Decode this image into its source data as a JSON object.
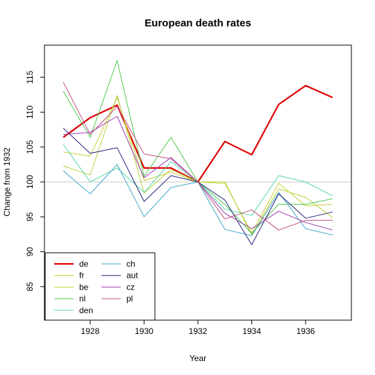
{
  "chart_data": {
    "type": "line",
    "title": "European death rates",
    "xlabel": "Year",
    "ylabel": "Change from 1932",
    "x": [
      1927,
      1928,
      1929,
      1930,
      1931,
      1932,
      1933,
      1934,
      1935,
      1936,
      1937
    ],
    "xlim": [
      1926.3,
      1937.7
    ],
    "ylim": [
      80.2,
      119.6
    ],
    "xticks": [
      1928,
      1930,
      1932,
      1934,
      1936
    ],
    "yticks": [
      85,
      90,
      95,
      100,
      105,
      110,
      115
    ],
    "reference_line": 100,
    "legend_position": "bottom-left",
    "series": [
      {
        "name": "de",
        "color": "#dd0000",
        "width": 2.2,
        "values": [
          106.4,
          109.2,
          111.0,
          102.0,
          102.0,
          100.0,
          105.8,
          103.9,
          111.1,
          113.8,
          112.1
        ]
      },
      {
        "name": "fr",
        "color": "#c8cc33",
        "width": 1,
        "values": [
          104.3,
          103.7,
          112.1,
          100.2,
          101.4,
          100.0,
          99.8,
          92.7,
          99.8,
          96.6,
          96.8
        ]
      },
      {
        "name": "be",
        "color": "#b6d439",
        "width": 1,
        "values": [
          102.3,
          101.0,
          112.4,
          98.4,
          101.8,
          100.0,
          100.0,
          92.4,
          99.0,
          97.8,
          94.9
        ]
      },
      {
        "name": "nl",
        "color": "#4cc94c",
        "width": 1,
        "values": [
          113.0,
          106.4,
          117.4,
          100.8,
          106.4,
          100.0,
          96.8,
          92.6,
          96.8,
          96.8,
          97.6
        ]
      },
      {
        "name": "den",
        "color": "#55d6a8",
        "width": 1,
        "values": [
          105.4,
          100.0,
          102.0,
          98.5,
          102.9,
          100.0,
          96.1,
          95.2,
          100.9,
          100.0,
          98.0
        ]
      },
      {
        "name": "ch",
        "color": "#3ba7c4",
        "width": 1,
        "values": [
          101.6,
          98.3,
          102.5,
          95.0,
          99.2,
          100.0,
          93.2,
          92.3,
          98.5,
          93.3,
          92.4
        ]
      },
      {
        "name": "aut",
        "color": "#23237f",
        "width": 1,
        "values": [
          107.7,
          104.1,
          104.9,
          97.2,
          100.9,
          100.0,
          97.4,
          91.0,
          98.3,
          94.8,
          95.7
        ]
      },
      {
        "name": "cz",
        "color": "#9b3bb0",
        "width": 1,
        "values": [
          106.8,
          107.1,
          109.4,
          100.6,
          103.5,
          100.0,
          95.5,
          93.3,
          95.8,
          94.2,
          93.1
        ]
      },
      {
        "name": "pl",
        "color": "#c24c7e",
        "width": 1,
        "values": [
          114.3,
          106.8,
          110.8,
          104.0,
          103.3,
          100.0,
          94.7,
          96.0,
          93.1,
          94.5,
          94.5
        ]
      }
    ]
  }
}
